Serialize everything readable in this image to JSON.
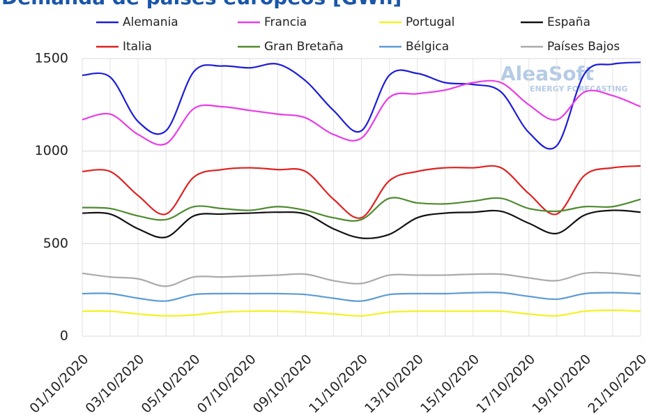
{
  "chart_data": {
    "type": "line",
    "title": "Demanda de países europeos [GWh]",
    "watermark": "AleaSoft",
    "watermark_subtitle": "ENERGY FORECASTING",
    "categories": [
      "01/10/2020",
      null,
      "03/10/2020",
      null,
      "05/10/2020",
      null,
      "07/10/2020",
      null,
      "09/10/2020",
      null,
      "11/10/2020",
      null,
      "13/10/2020",
      null,
      "15/10/2020",
      null,
      "17/10/2020",
      null,
      "19/10/2020",
      null,
      "21/10/2020"
    ],
    "ylim": [
      0,
      1500
    ],
    "yticks": [
      0,
      500,
      1000,
      1500
    ],
    "grid": true,
    "series": [
      {
        "name": "Alemania",
        "color": "#1c1cd6",
        "values": [
          1410,
          1400,
          1160,
          1110,
          1430,
          1460,
          1450,
          1470,
          1380,
          1220,
          1110,
          1410,
          1420,
          1370,
          1360,
          1320,
          1100,
          1030,
          1420,
          1470,
          1480
        ]
      },
      {
        "name": "Francia",
        "color": "#e83be8",
        "values": [
          1170,
          1200,
          1090,
          1040,
          1230,
          1240,
          1220,
          1200,
          1180,
          1090,
          1070,
          1290,
          1310,
          1330,
          1370,
          1370,
          1250,
          1170,
          1320,
          1300,
          1240
        ]
      },
      {
        "name": "Portugal",
        "color": "#f2f222",
        "values": [
          135,
          135,
          120,
          110,
          115,
          130,
          135,
          135,
          130,
          120,
          110,
          130,
          135,
          135,
          135,
          135,
          120,
          110,
          135,
          140,
          135
        ]
      },
      {
        "name": "España",
        "color": "#111111",
        "values": [
          665,
          660,
          580,
          535,
          650,
          660,
          665,
          670,
          660,
          580,
          530,
          550,
          640,
          665,
          670,
          675,
          610,
          555,
          655,
          680,
          670
        ]
      },
      {
        "name": "Italia",
        "color": "#e02020",
        "values": [
          890,
          890,
          760,
          660,
          860,
          900,
          910,
          900,
          890,
          740,
          640,
          840,
          890,
          910,
          910,
          910,
          770,
          660,
          870,
          910,
          920
        ]
      },
      {
        "name": "Gran Bretaña",
        "color": "#4e8a2e",
        "values": [
          695,
          690,
          650,
          630,
          700,
          690,
          680,
          700,
          680,
          640,
          630,
          745,
          720,
          715,
          730,
          745,
          690,
          675,
          700,
          700,
          740
        ]
      },
      {
        "name": "Bélgica",
        "color": "#5b9bd5",
        "values": [
          230,
          230,
          205,
          190,
          225,
          230,
          230,
          230,
          225,
          205,
          190,
          225,
          230,
          230,
          235,
          235,
          215,
          200,
          230,
          235,
          230
        ]
      },
      {
        "name": "Países Bajos",
        "color": "#aaaaaa",
        "values": [
          340,
          320,
          310,
          270,
          320,
          320,
          325,
          330,
          335,
          300,
          285,
          330,
          330,
          330,
          335,
          335,
          315,
          300,
          340,
          340,
          325
        ]
      }
    ]
  }
}
